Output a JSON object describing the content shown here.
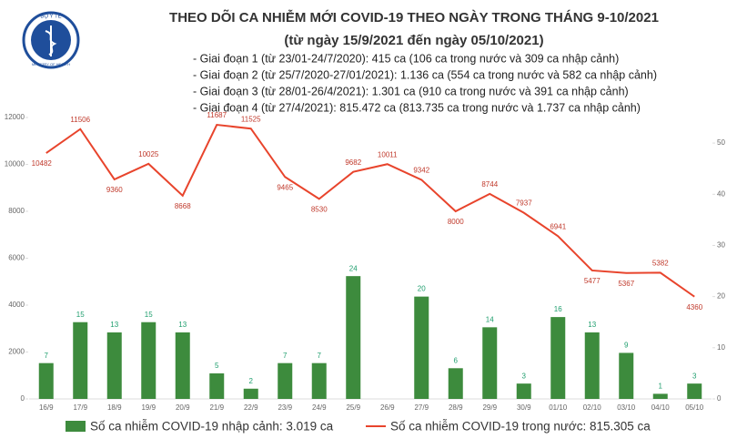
{
  "logo": {
    "top": "BỘ Y TẾ",
    "bottom": "MINISTRY OF HEALTH"
  },
  "chart_data": {
    "type": "bar",
    "title": "THEO DÕI CA NHIỄM MỚI COVID-19 THEO NGÀY TRONG THÁNG 9-10/2021",
    "subtitle": "(từ ngày 15/9/2021 đến ngày 05/10/2021)",
    "notes": [
      "- Giai đoạn 1 (từ 23/01-24/7/2020): 415 ca (106 ca trong nước và 309 ca nhập cảnh)",
      "- Giai đoạn 2 (từ 25/7/2020-27/01/2021): 1.136 ca (554 ca trong nước và 582 ca nhập cảnh)",
      "- Giai đoạn 3 (từ 28/01-26/4/2021): 1.301 ca (910 ca trong nước và 391 ca nhập cảnh)",
      "- Giai đoạn 4 (từ 27/4/2021): 815.472 ca (813.735 ca trong nước và 1.737 ca nhập cảnh)"
    ],
    "categories": [
      "16/9",
      "17/9",
      "18/9",
      "19/9",
      "20/9",
      "21/9",
      "22/9",
      "23/9",
      "24/9",
      "25/9",
      "26/9",
      "27/9",
      "28/9",
      "29/9",
      "30/9",
      "01/10",
      "02/10",
      "03/10",
      "04/10",
      "05/10"
    ],
    "series": [
      {
        "name": "Số ca nhiễm COVID-19 nhập cảnh: 3.019 ca",
        "type": "bar",
        "axis": "y2",
        "color": "#3d8b3d",
        "values": [
          7,
          15,
          13,
          15,
          13,
          5,
          2,
          7,
          7,
          24,
          null,
          20,
          6,
          14,
          3,
          16,
          13,
          9,
          1,
          3
        ]
      },
      {
        "name": "Số ca nhiễm COVID-19 trong nước: 815.305 ca",
        "type": "line",
        "color": "#e8442c",
        "values": [
          10482,
          11506,
          9360,
          10025,
          8668,
          11687,
          11525,
          9465,
          8530,
          9682,
          10011,
          9342,
          8000,
          8744,
          7937,
          6941,
          5477,
          5367,
          5382,
          4360
        ]
      }
    ],
    "ylim": [
      0,
      12000
    ],
    "yticks": [
      0,
      2000,
      4000,
      6000,
      8000,
      10000,
      12000
    ],
    "y2lim": [
      0,
      55
    ],
    "y2ticks": [
      0,
      10,
      20,
      30,
      40,
      50
    ]
  }
}
